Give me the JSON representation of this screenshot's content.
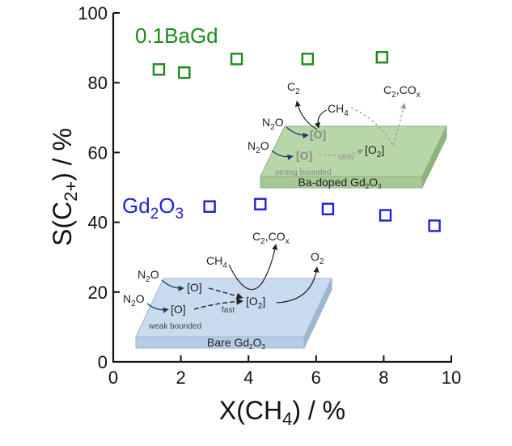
{
  "chart_data": {
    "type": "scatter",
    "xlabel": "X(CH4) / %",
    "ylabel": "S(C2+) / %",
    "xlim": [
      0,
      10
    ],
    "ylim": [
      0,
      100
    ],
    "x_ticks": [
      0,
      2,
      4,
      6,
      8,
      10
    ],
    "y_ticks": [
      0,
      20,
      40,
      60,
      80,
      100
    ],
    "grid": false,
    "series": [
      {
        "name": "0.1BaGd",
        "color": "#1a8a1a",
        "marker": "open-square",
        "points": [
          [
            1.35,
            83.8
          ],
          [
            2.1,
            82.9
          ],
          [
            3.65,
            86.8
          ],
          [
            5.75,
            86.8
          ],
          [
            7.95,
            87.3
          ]
        ]
      },
      {
        "name": "Gd2O3",
        "color": "#1f1fe0",
        "marker": "open-square",
        "points": [
          [
            2.85,
            44.5
          ],
          [
            4.35,
            45.2
          ],
          [
            6.35,
            43.8
          ],
          [
            8.05,
            42.0
          ],
          [
            9.5,
            39.0
          ]
        ]
      }
    ]
  },
  "insets": {
    "top": {
      "plate_label": "Ba-doped Gd2O3",
      "plate_color": "#b7d7a8",
      "reactant_1": "N2O",
      "reactant_2": "N2O",
      "site_1": "[O]",
      "site_2": "[O]",
      "pair": "[O2]",
      "rate": "slow",
      "bond": "strong bounded",
      "feed": "CH4",
      "product_1": "C2",
      "product_2": "C2,COx"
    },
    "bottom": {
      "plate_label": "Bare Gd2O3",
      "plate_color": "#c9dbee",
      "reactant_1": "N2O",
      "reactant_2": "N2O",
      "site_1": "[O]",
      "site_2": "[O]",
      "pair": "[O2]",
      "rate": "fast",
      "bond": "weak bounded",
      "feed": "CH4",
      "product_1": "C2,COx",
      "product_2": "O2"
    }
  }
}
